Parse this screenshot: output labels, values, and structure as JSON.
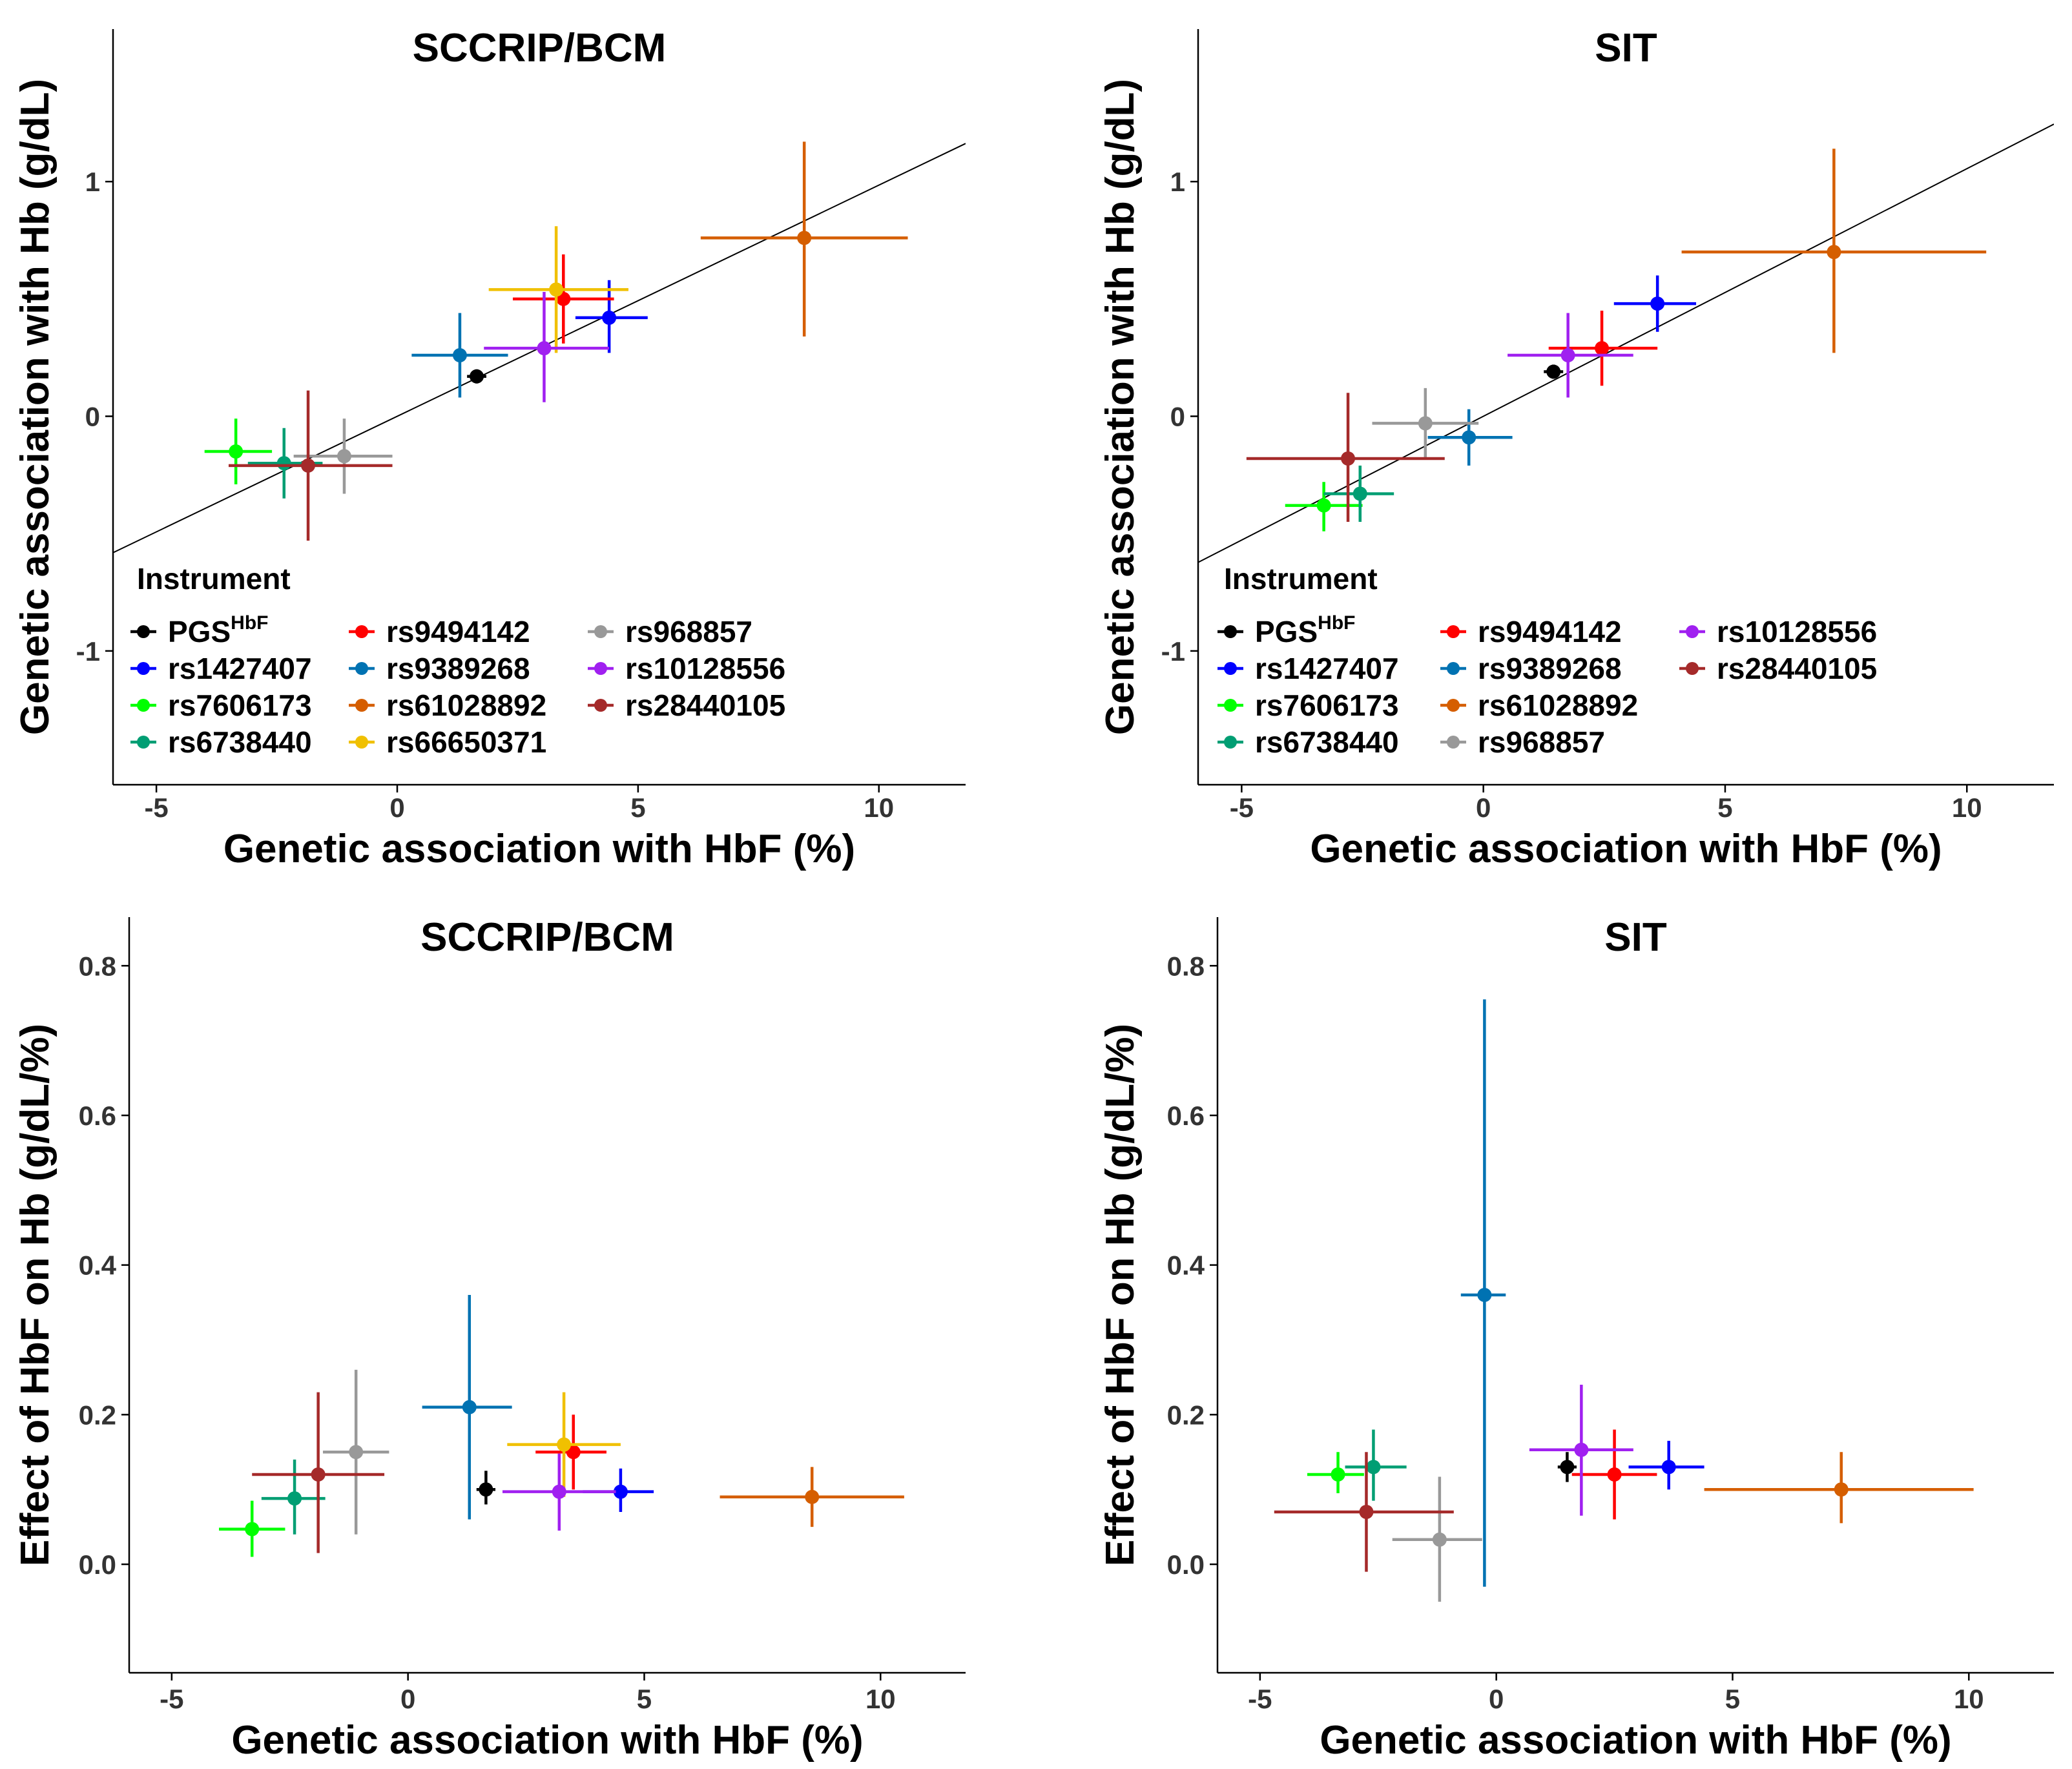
{
  "figure": {
    "legend_title": "Instrument",
    "instruments": {
      "PGS_HbF": {
        "label": "PGS",
        "sup": "HbF",
        "color": "#000000"
      },
      "rs1427407": {
        "label": "rs1427407",
        "color": "#0000FF"
      },
      "rs7606173": {
        "label": "rs7606173",
        "color": "#00FF00"
      },
      "rs6738440": {
        "label": "rs6738440",
        "color": "#009E73"
      },
      "rs9494142": {
        "label": "rs9494142",
        "color": "#FF0000"
      },
      "rs9389268": {
        "label": "rs9389268",
        "color": "#0072B2"
      },
      "rs61028892": {
        "label": "rs61028892",
        "color": "#D55E00"
      },
      "rs66650371": {
        "label": "rs66650371",
        "color": "#F0C000"
      },
      "rs968857": {
        "label": "rs968857",
        "color": "#999999"
      },
      "rs10128556": {
        "label": "rs10128556",
        "color": "#A020F0"
      },
      "rs28440105": {
        "label": "rs28440105",
        "color": "#A52A2A"
      }
    }
  },
  "chart_data": [
    {
      "id": "sccrip-hb",
      "type": "scatter",
      "title": "SCCRIP/BCM",
      "xlabel": "Genetic association with HbF (%)",
      "ylabel": "Genetic association with Hb (g/dL)",
      "xlim": [
        -5.9,
        11.8
      ],
      "ylim": [
        -1.57,
        1.65
      ],
      "xticks": [
        -5,
        0,
        5,
        10
      ],
      "yticks": [
        -1,
        0,
        1
      ],
      "fit_line": {
        "intercept": 0.0,
        "slope": 0.0985
      },
      "legend": {
        "title": "Instrument",
        "position": "bottom-left",
        "columns": [
          [
            "PGS_HbF",
            "rs1427407",
            "rs7606173",
            "rs6738440"
          ],
          [
            "rs9494142",
            "rs9389268",
            "rs61028892",
            "rs66650371"
          ],
          [
            "rs968857",
            "rs10128556",
            "rs28440105"
          ]
        ]
      },
      "points": [
        {
          "id": "PGS_HbF",
          "x": 1.65,
          "xlo": 1.45,
          "xhi": 1.85,
          "y": 0.17,
          "ylo": 0.14,
          "yhi": 0.2
        },
        {
          "id": "rs1427407",
          "x": 4.4,
          "xlo": 3.7,
          "xhi": 5.2,
          "y": 0.42,
          "ylo": 0.27,
          "yhi": 0.58
        },
        {
          "id": "rs7606173",
          "x": -3.35,
          "xlo": -4.0,
          "xhi": -2.6,
          "y": -0.15,
          "ylo": -0.29,
          "yhi": -0.01
        },
        {
          "id": "rs6738440",
          "x": -2.35,
          "xlo": -3.1,
          "xhi": -1.55,
          "y": -0.2,
          "ylo": -0.35,
          "yhi": -0.05
        },
        {
          "id": "rs9494142",
          "x": 3.45,
          "xlo": 2.4,
          "xhi": 4.5,
          "y": 0.5,
          "ylo": 0.31,
          "yhi": 0.69
        },
        {
          "id": "rs9389268",
          "x": 1.3,
          "xlo": 0.3,
          "xhi": 2.3,
          "y": 0.26,
          "ylo": 0.08,
          "yhi": 0.44
        },
        {
          "id": "rs61028892",
          "x": 8.45,
          "xlo": 6.3,
          "xhi": 10.6,
          "y": 0.76,
          "ylo": 0.34,
          "yhi": 1.17
        },
        {
          "id": "rs66650371",
          "x": 3.3,
          "xlo": 1.9,
          "xhi": 4.8,
          "y": 0.54,
          "ylo": 0.27,
          "yhi": 0.81
        },
        {
          "id": "rs968857",
          "x": -1.1,
          "xlo": -2.15,
          "xhi": -0.1,
          "y": -0.17,
          "ylo": -0.33,
          "yhi": -0.01
        },
        {
          "id": "rs10128556",
          "x": 3.05,
          "xlo": 1.8,
          "xhi": 4.4,
          "y": 0.29,
          "ylo": 0.06,
          "yhi": 0.53
        },
        {
          "id": "rs28440105",
          "x": -1.85,
          "xlo": -3.5,
          "xhi": -0.1,
          "y": -0.21,
          "ylo": -0.53,
          "yhi": 0.11
        }
      ]
    },
    {
      "id": "sit-hb",
      "type": "scatter",
      "title": "SIT",
      "xlabel": "Genetic association with HbF (%)",
      "ylabel": "Genetic association with Hb (g/dL)",
      "xlim": [
        -5.9,
        11.8
      ],
      "ylim": [
        -1.57,
        1.65
      ],
      "xticks": [
        -5,
        0,
        5,
        10
      ],
      "yticks": [
        -1,
        0,
        1
      ],
      "fit_line": {
        "intercept": 0.0,
        "slope": 0.1055
      },
      "legend": {
        "title": "Instrument",
        "position": "bottom-left",
        "columns": [
          [
            "PGS_HbF",
            "rs1427407",
            "rs7606173",
            "rs6738440"
          ],
          [
            "rs9494142",
            "rs9389268",
            "rs61028892",
            "rs968857"
          ],
          [
            "rs10128556",
            "rs28440105"
          ]
        ]
      },
      "points": [
        {
          "id": "PGS_HbF",
          "x": 1.45,
          "xlo": 1.25,
          "xhi": 1.65,
          "y": 0.19,
          "ylo": 0.16,
          "yhi": 0.22
        },
        {
          "id": "rs1427407",
          "x": 3.6,
          "xlo": 2.7,
          "xhi": 4.4,
          "y": 0.48,
          "ylo": 0.36,
          "yhi": 0.6
        },
        {
          "id": "rs7606173",
          "x": -3.3,
          "xlo": -4.1,
          "xhi": -2.5,
          "y": -0.38,
          "ylo": -0.49,
          "yhi": -0.28
        },
        {
          "id": "rs6738440",
          "x": -2.55,
          "xlo": -3.3,
          "xhi": -1.85,
          "y": -0.33,
          "ylo": -0.45,
          "yhi": -0.21
        },
        {
          "id": "rs9494142",
          "x": 2.45,
          "xlo": 1.35,
          "xhi": 3.6,
          "y": 0.29,
          "ylo": 0.13,
          "yhi": 0.45
        },
        {
          "id": "rs9389268",
          "x": -0.3,
          "xlo": -1.15,
          "xhi": 0.6,
          "y": -0.09,
          "ylo": -0.21,
          "yhi": 0.03
        },
        {
          "id": "rs61028892",
          "x": 7.25,
          "xlo": 4.1,
          "xhi": 10.4,
          "y": 0.7,
          "ylo": 0.27,
          "yhi": 1.14
        },
        {
          "id": "rs968857",
          "x": -1.2,
          "xlo": -2.3,
          "xhi": -0.1,
          "y": -0.03,
          "ylo": -0.18,
          "yhi": 0.12
        },
        {
          "id": "rs10128556",
          "x": 1.75,
          "xlo": 0.5,
          "xhi": 3.1,
          "y": 0.26,
          "ylo": 0.08,
          "yhi": 0.44
        },
        {
          "id": "rs28440105",
          "x": -2.8,
          "xlo": -4.9,
          "xhi": -0.8,
          "y": -0.18,
          "ylo": -0.45,
          "yhi": 0.1
        }
      ]
    },
    {
      "id": "sccrip-effect",
      "type": "scatter",
      "title": "SCCRIP/BCM",
      "xlabel": "Genetic association with HbF (%)",
      "ylabel": "Effect of HbF on Hb (g/dL/%)",
      "xlim": [
        -5.9,
        11.8
      ],
      "ylim": [
        -0.145,
        0.865
      ],
      "xticks": [
        -5,
        0,
        5,
        10
      ],
      "yticks": [
        0.0,
        0.2,
        0.4,
        0.6,
        0.8
      ],
      "ytick_labels": [
        "0.0",
        "0.2",
        "0.4",
        "0.6",
        "0.8"
      ],
      "points": [
        {
          "id": "PGS_HbF",
          "x": 1.65,
          "xlo": 1.45,
          "xhi": 1.85,
          "y": 0.1,
          "ylo": 0.08,
          "yhi": 0.125
        },
        {
          "id": "rs1427407",
          "x": 4.5,
          "xlo": 3.7,
          "xhi": 5.2,
          "y": 0.097,
          "ylo": 0.07,
          "yhi": 0.128
        },
        {
          "id": "rs7606173",
          "x": -3.3,
          "xlo": -4.0,
          "xhi": -2.6,
          "y": 0.047,
          "ylo": 0.01,
          "yhi": 0.085
        },
        {
          "id": "rs6738440",
          "x": -2.4,
          "xlo": -3.1,
          "xhi": -1.75,
          "y": 0.088,
          "ylo": 0.04,
          "yhi": 0.14
        },
        {
          "id": "rs9494142",
          "x": 3.5,
          "xlo": 2.7,
          "xhi": 4.2,
          "y": 0.15,
          "ylo": 0.1,
          "yhi": 0.2
        },
        {
          "id": "rs9389268",
          "x": 1.3,
          "xlo": 0.3,
          "xhi": 2.2,
          "y": 0.21,
          "ylo": 0.06,
          "yhi": 0.36
        },
        {
          "id": "rs61028892",
          "x": 8.55,
          "xlo": 6.6,
          "xhi": 10.5,
          "y": 0.09,
          "ylo": 0.05,
          "yhi": 0.13
        },
        {
          "id": "rs66650371",
          "x": 3.3,
          "xlo": 2.1,
          "xhi": 4.5,
          "y": 0.16,
          "ylo": 0.09,
          "yhi": 0.23
        },
        {
          "id": "rs968857",
          "x": -1.1,
          "xlo": -1.8,
          "xhi": -0.4,
          "y": 0.15,
          "ylo": 0.04,
          "yhi": 0.26
        },
        {
          "id": "rs10128556",
          "x": 3.2,
          "xlo": 2.0,
          "xhi": 4.4,
          "y": 0.097,
          "ylo": 0.045,
          "yhi": 0.148
        },
        {
          "id": "rs28440105",
          "x": -1.9,
          "xlo": -3.3,
          "xhi": -0.5,
          "y": 0.12,
          "ylo": 0.015,
          "yhi": 0.23
        }
      ]
    },
    {
      "id": "sit-effect",
      "type": "scatter",
      "title": "SIT",
      "xlabel": "Genetic association with HbF (%)",
      "ylabel": "Effect of HbF on Hb (g/dL/%)",
      "xlim": [
        -5.9,
        11.8
      ],
      "ylim": [
        -0.145,
        0.865
      ],
      "xticks": [
        -5,
        0,
        5,
        10
      ],
      "yticks": [
        0.0,
        0.2,
        0.4,
        0.6,
        0.8
      ],
      "ytick_labels": [
        "0.0",
        "0.2",
        "0.4",
        "0.6",
        "0.8"
      ],
      "points": [
        {
          "id": "PGS_HbF",
          "x": 1.5,
          "xlo": 1.3,
          "xhi": 1.7,
          "y": 0.13,
          "ylo": 0.11,
          "yhi": 0.15
        },
        {
          "id": "rs1427407",
          "x": 3.65,
          "xlo": 2.8,
          "xhi": 4.4,
          "y": 0.13,
          "ylo": 0.1,
          "yhi": 0.165
        },
        {
          "id": "rs7606173",
          "x": -3.35,
          "xlo": -4.0,
          "xhi": -2.8,
          "y": 0.12,
          "ylo": 0.095,
          "yhi": 0.15
        },
        {
          "id": "rs6738440",
          "x": -2.6,
          "xlo": -3.2,
          "xhi": -1.9,
          "y": 0.13,
          "ylo": 0.085,
          "yhi": 0.18
        },
        {
          "id": "rs9494142",
          "x": 2.5,
          "xlo": 1.6,
          "xhi": 3.4,
          "y": 0.12,
          "ylo": 0.06,
          "yhi": 0.18
        },
        {
          "id": "rs9389268",
          "x": -0.25,
          "xlo": -0.75,
          "xhi": 0.2,
          "y": 0.36,
          "ylo": -0.03,
          "yhi": 0.755
        },
        {
          "id": "rs61028892",
          "x": 7.3,
          "xlo": 4.4,
          "xhi": 10.1,
          "y": 0.1,
          "ylo": 0.055,
          "yhi": 0.15
        },
        {
          "id": "rs968857",
          "x": -1.2,
          "xlo": -2.2,
          "xhi": -0.3,
          "y": 0.033,
          "ylo": -0.05,
          "yhi": 0.117
        },
        {
          "id": "rs10128556",
          "x": 1.8,
          "xlo": 0.7,
          "xhi": 2.9,
          "y": 0.153,
          "ylo": 0.065,
          "yhi": 0.24
        },
        {
          "id": "rs28440105",
          "x": -2.75,
          "xlo": -4.7,
          "xhi": -0.9,
          "y": 0.07,
          "ylo": -0.01,
          "yhi": 0.15
        }
      ]
    }
  ]
}
